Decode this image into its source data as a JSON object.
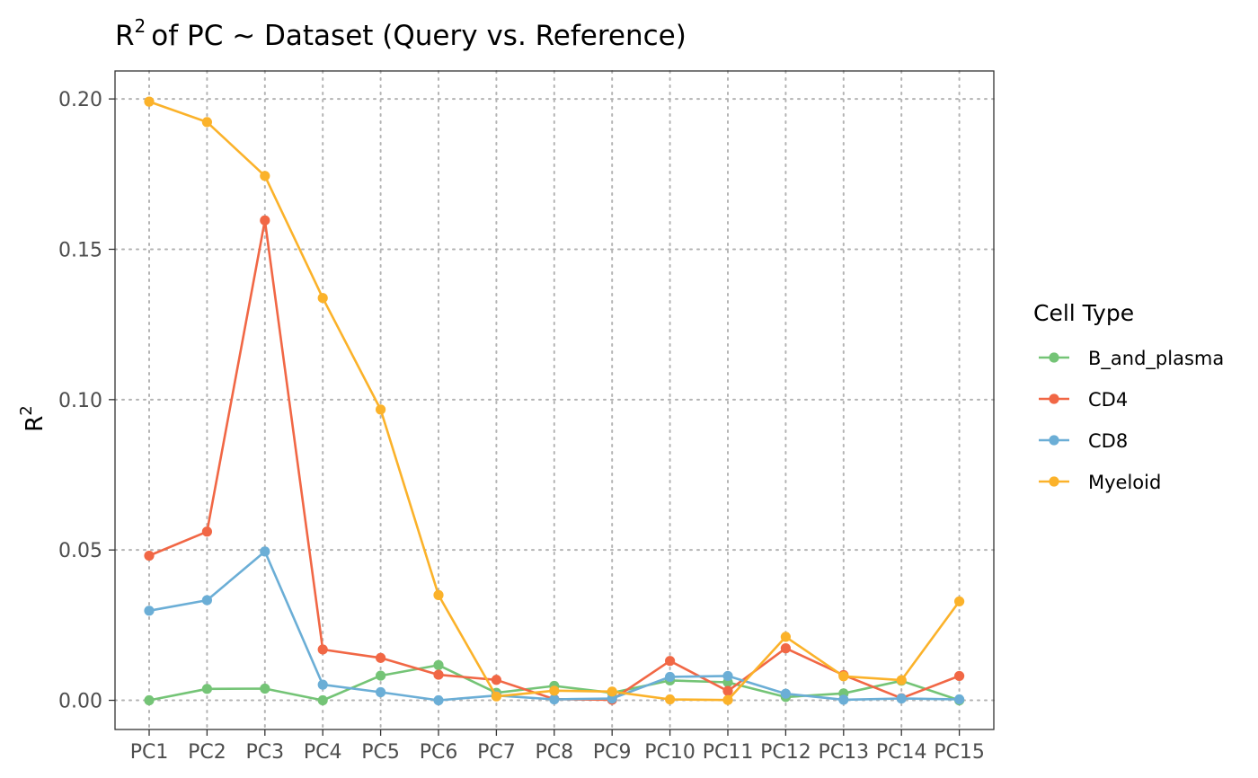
{
  "chart_data": {
    "type": "line",
    "title": "of PC ~  Dataset (Query vs. Reference)",
    "title_prefix": "R",
    "title_sup": "2",
    "xlabel": "",
    "ylabel": "R",
    "ylabel_sup": "2",
    "categories": [
      "PC1",
      "PC2",
      "PC3",
      "PC4",
      "PC5",
      "PC6",
      "PC7",
      "PC8",
      "PC9",
      "PC10",
      "PC11",
      "PC12",
      "PC13",
      "PC14",
      "PC15"
    ],
    "ylim": [
      -0.0097,
      0.2093
    ],
    "yticks": [
      0.0,
      0.05,
      0.1,
      0.15,
      0.2
    ],
    "ytick_labels": [
      "0.00",
      "0.05",
      "0.10",
      "0.15",
      "0.20"
    ],
    "grid": true,
    "legend_title": "Cell Type",
    "legend_position": "right",
    "series": [
      {
        "name": "B_and_plasma",
        "color": "#74c476",
        "values": [
          0.0,
          0.0038,
          0.0039,
          0.0,
          0.0082,
          0.0117,
          0.0025,
          0.0048,
          0.0025,
          0.0066,
          0.006,
          0.0011,
          0.0023,
          0.0065,
          0.0
        ]
      },
      {
        "name": "CD4",
        "color": "#f16745",
        "values": [
          0.0481,
          0.0561,
          0.1596,
          0.0169,
          0.0141,
          0.0085,
          0.0068,
          0.0004,
          0.0002,
          0.0131,
          0.0031,
          0.0173,
          0.0084,
          0.0007,
          0.0081
        ]
      },
      {
        "name": "CD8",
        "color": "#6baed6",
        "values": [
          0.0298,
          0.0333,
          0.0495,
          0.0052,
          0.0027,
          0.0,
          0.0016,
          0.0003,
          0.0006,
          0.0078,
          0.0081,
          0.0022,
          0.0002,
          0.0006,
          0.0003
        ]
      },
      {
        "name": "Myeloid",
        "color": "#fbb22a",
        "values": [
          0.1991,
          0.1923,
          0.1744,
          0.1338,
          0.0967,
          0.035,
          0.0013,
          0.0032,
          0.0029,
          0.0003,
          0.0001,
          0.0211,
          0.008,
          0.0067,
          0.0329
        ]
      }
    ]
  }
}
